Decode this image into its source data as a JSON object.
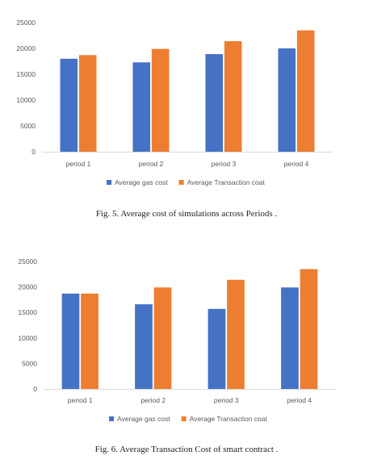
{
  "chart_data": [
    {
      "type": "bar",
      "categories": [
        "period 1",
        "period 2",
        "period 3",
        "period 4"
      ],
      "series": [
        {
          "name": "Average gas cost",
          "values": [
            18000,
            17300,
            18900,
            20000
          ],
          "color": "#4472C4"
        },
        {
          "name": "Average Transaction coat",
          "values": [
            18700,
            19900,
            21400,
            23500
          ],
          "color": "#ED7D31"
        }
      ],
      "ylim": [
        0,
        25000
      ],
      "yticks": [
        0,
        5000,
        10000,
        15000,
        20000,
        25000
      ],
      "grid": false,
      "legend": "bottom",
      "caption": "Fig. 5.  Average cost of simulations across Periods ."
    },
    {
      "type": "bar",
      "categories": [
        "period 1",
        "period 2",
        "period 3",
        "period 4"
      ],
      "series": [
        {
          "name": "Average gas cost",
          "values": [
            18700,
            16600,
            15700,
            19900
          ],
          "color": "#4472C4"
        },
        {
          "name": "Average Transaction coat",
          "values": [
            18700,
            19900,
            21400,
            23500
          ],
          "color": "#ED7D31"
        }
      ],
      "ylim": [
        0,
        25000
      ],
      "yticks": [
        0,
        5000,
        10000,
        15000,
        20000,
        25000
      ],
      "grid": false,
      "legend": "bottom",
      "caption": "Fig. 6.  Average Transaction Cost of smart contract ."
    }
  ]
}
